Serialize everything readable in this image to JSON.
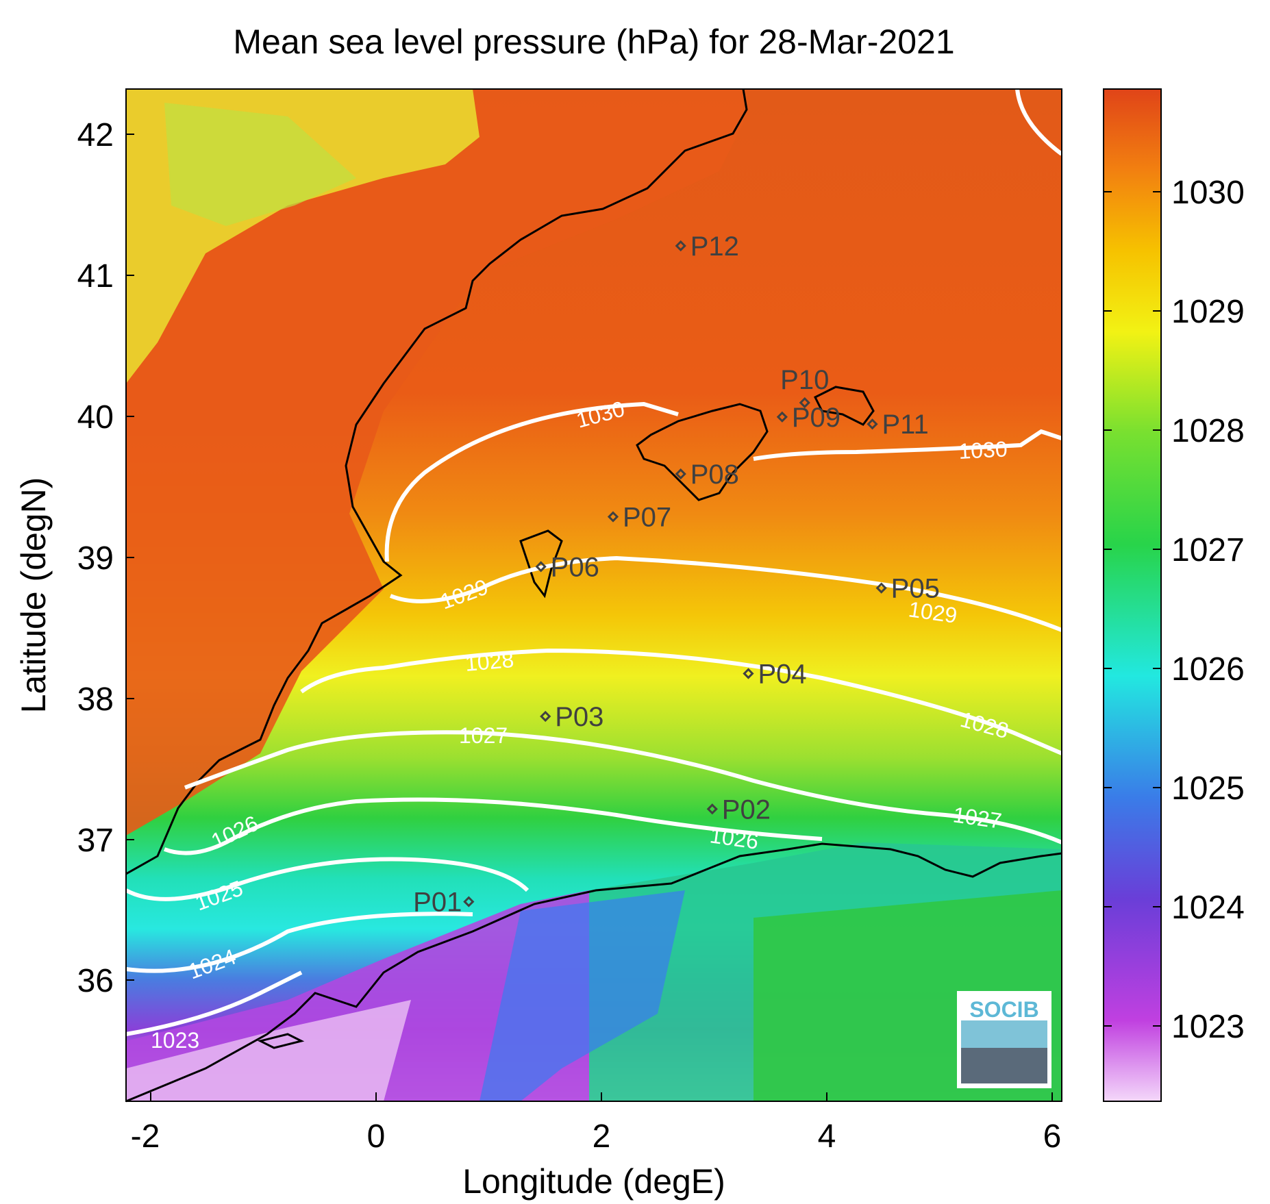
{
  "title": "Mean sea level pressure (hPa) for 28-Mar-2021",
  "x_axis": {
    "label": "Longitude (degE)",
    "ticks": [
      "-2",
      "0",
      "2",
      "4",
      "6"
    ],
    "range": [
      -2.2,
      6.1
    ]
  },
  "y_axis": {
    "label": "Latitude (degN)",
    "ticks": [
      "36",
      "37",
      "38",
      "39",
      "40",
      "41",
      "42"
    ],
    "range": [
      35.1,
      42.2
    ]
  },
  "colorbar": {
    "ticks": [
      "1023",
      "1024",
      "1025",
      "1026",
      "1027",
      "1028",
      "1029",
      "1030"
    ],
    "range": [
      1022.4,
      1030.9
    ],
    "colors": [
      "#f0c8f8",
      "#c040e0",
      "#6040d8",
      "#3090f0",
      "#20e8e0",
      "#20d040",
      "#70e030",
      "#f0f010",
      "#f8c000",
      "#f09000",
      "#f06010",
      "#e04818"
    ]
  },
  "stations": [
    {
      "label": "P01",
      "lon": 0.84,
      "lat": 36.5
    },
    {
      "label": "P02",
      "lon": 3.0,
      "lat": 37.15
    },
    {
      "label": "P03",
      "lon": 1.52,
      "lat": 37.8
    },
    {
      "label": "P04",
      "lon": 3.32,
      "lat": 38.1
    },
    {
      "label": "P05",
      "lon": 4.5,
      "lat": 38.7
    },
    {
      "label": "P06",
      "lon": 1.48,
      "lat": 38.85
    },
    {
      "label": "P07",
      "lon": 2.12,
      "lat": 39.2
    },
    {
      "label": "P08",
      "lon": 2.72,
      "lat": 39.5
    },
    {
      "label": "P09",
      "lon": 3.62,
      "lat": 39.9
    },
    {
      "label": "P10",
      "lon": 3.82,
      "lat": 40.0
    },
    {
      "label": "P11",
      "lon": 4.42,
      "lat": 39.85
    },
    {
      "label": "P12",
      "lon": 2.72,
      "lat": 41.1
    }
  ],
  "contour_labels": [
    "1023",
    "1024",
    "1025",
    "1026",
    "1026",
    "1027",
    "1027",
    "1028",
    "1028",
    "1029",
    "1029",
    "1030",
    "1030"
  ],
  "logo": "SOCIB"
}
